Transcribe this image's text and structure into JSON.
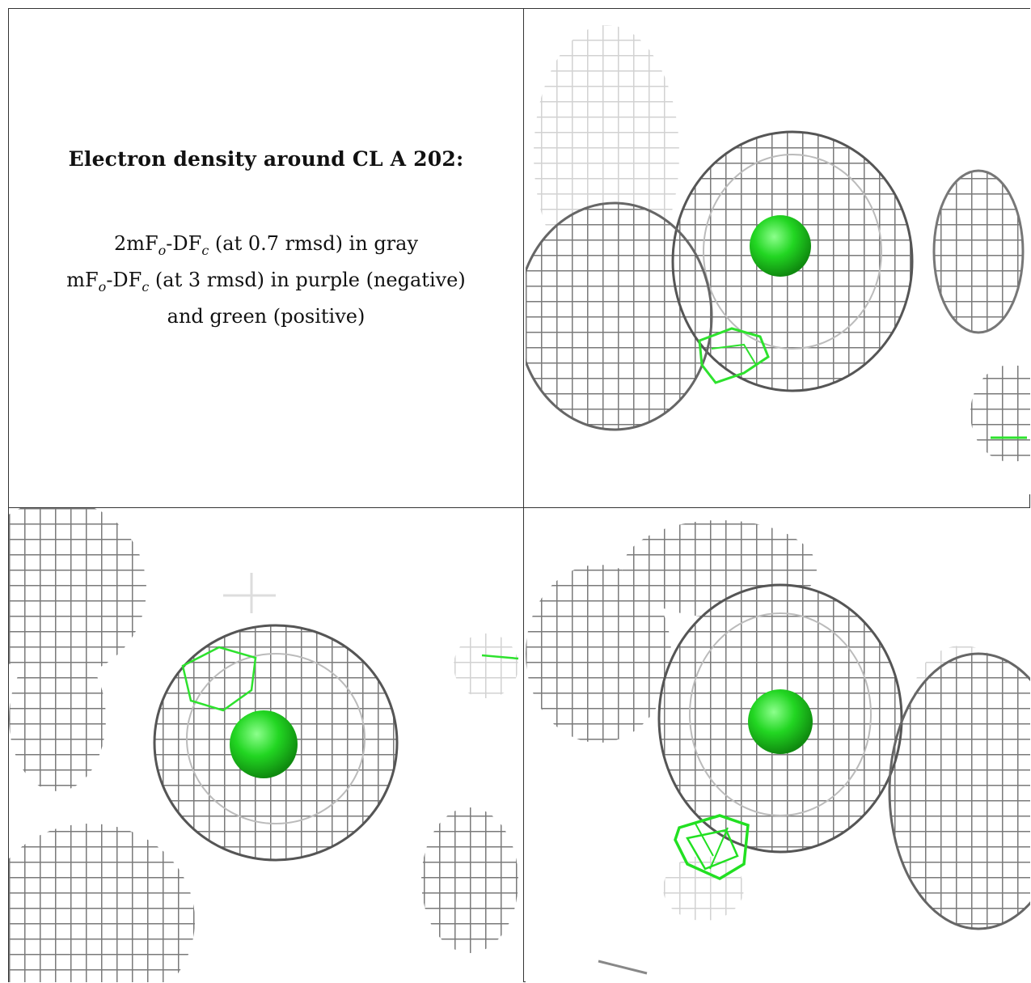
{
  "caption": {
    "title": "Electron density around CL A 202:",
    "line1_pre": "2mF",
    "line1_sub_o": "o",
    "line1_mid": "-DF",
    "line1_sub_c": "c",
    "line1_post": " (at 0.7 rmsd) in gray",
    "line2_pre": "mF",
    "line2_sub_o": "o",
    "line2_mid": "-DF",
    "line2_sub_c": "c",
    "line2_post": " (at 3 rmsd) in purple (negative)",
    "line3": "and green (positive)"
  },
  "colors": {
    "mesh_gray": "#8a8a8a",
    "mesh_light": "#cfcfcf",
    "mesh_dark": "#4a4a4a",
    "positive_green": "#22e022",
    "ion_green": "#1ec81e"
  },
  "panels": [
    {
      "id": "view-1"
    },
    {
      "id": "view-2"
    },
    {
      "id": "view-3"
    }
  ]
}
